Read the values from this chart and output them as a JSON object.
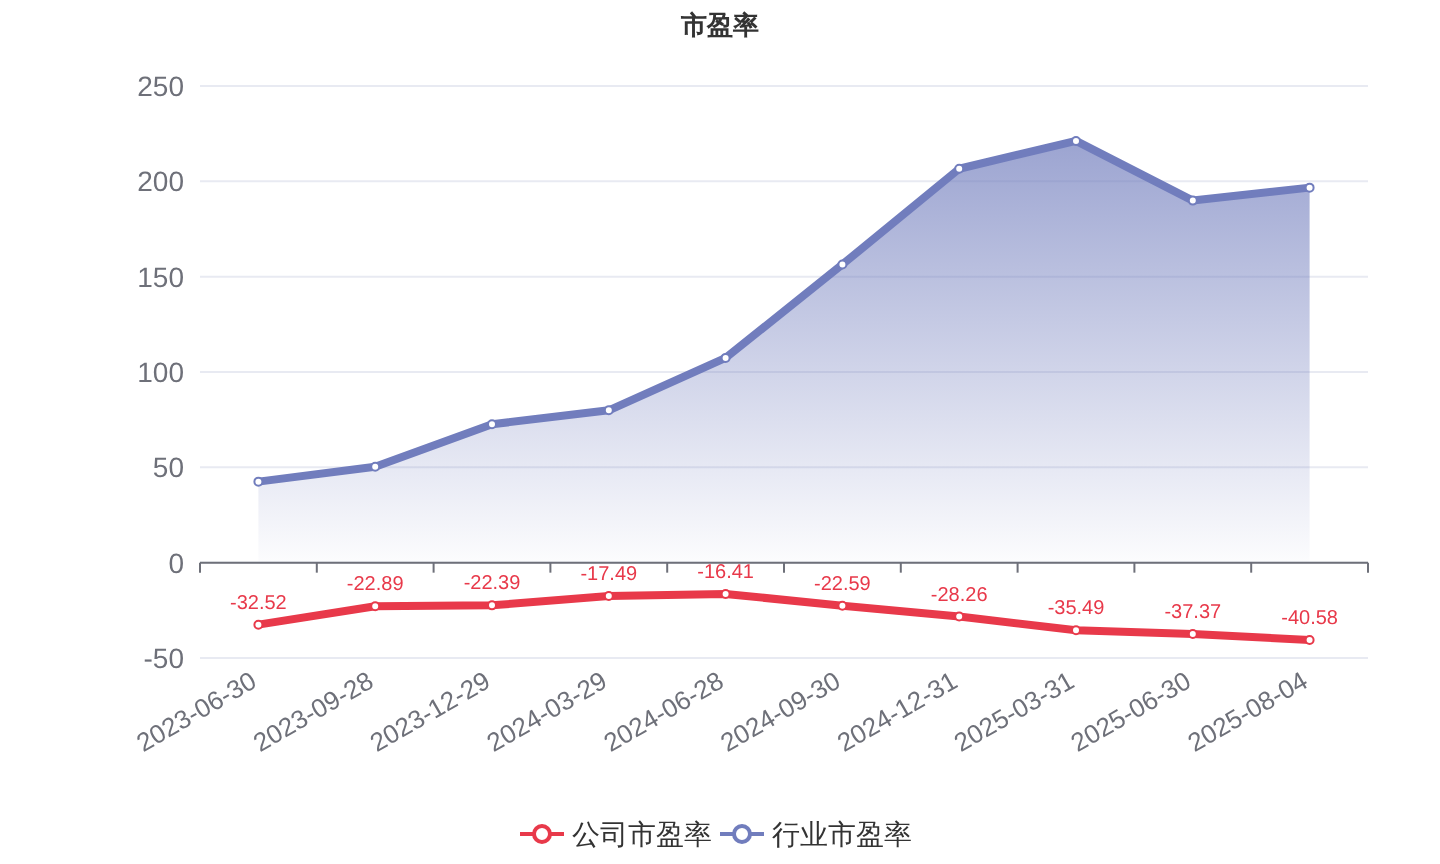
{
  "chart_data": {
    "type": "line",
    "title": "市盈率",
    "categories": [
      "2023-06-30",
      "2023-09-28",
      "2023-12-29",
      "2024-03-29",
      "2024-06-28",
      "2024-09-30",
      "2024-12-31",
      "2025-03-31",
      "2025-06-30",
      "2025-08-04"
    ],
    "series": [
      {
        "name": "公司市盈率",
        "type": "line",
        "color": "#e8394a",
        "values": [
          -32.52,
          -22.89,
          -22.39,
          -17.49,
          -16.41,
          -22.59,
          -28.26,
          -35.49,
          -37.37,
          -40.58
        ],
        "value_labels": [
          "-32.52",
          "-22.89",
          "-22.39",
          "-17.49",
          "-16.41",
          "-22.59",
          "-28.26",
          "-35.49",
          "-37.37",
          "-40.58"
        ]
      },
      {
        "name": "行业市盈率",
        "type": "area",
        "color": "#717dbd",
        "values": [
          42.5,
          50.3,
          72.6,
          79.9,
          107.4,
          156.4,
          206.6,
          221.2,
          189.9,
          196.7
        ]
      }
    ],
    "ylim": [
      -50,
      250
    ],
    "yticks": [
      -50,
      0,
      50,
      100,
      150,
      200,
      250
    ],
    "grid": "y",
    "legend": "bottom",
    "marker": "circle",
    "line_style": "solid"
  }
}
